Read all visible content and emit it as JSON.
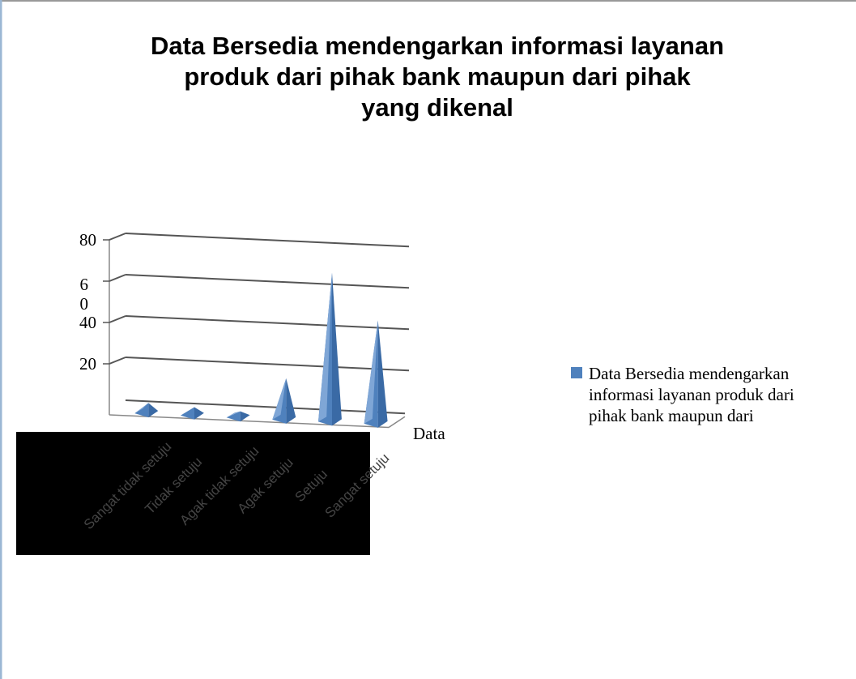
{
  "chart_data": {
    "type": "bar3d-pyramid",
    "title": "Data Bersedia mendengarkan informasi layanan\nproduk dari pihak bank maupun dari pihak\nyang dikenal",
    "categories": [
      "Sangat tidak setuju",
      "Tidak setuju",
      "Agak tidak setuju",
      "Agak setuju",
      "Setuju",
      "Sangat setuju"
    ],
    "series": [
      {
        "name": "Data Bersedia mendengarkan informasi layanan produk dari pihak bank maupun dari",
        "color": "#4f81bd",
        "values": [
          5,
          4,
          3,
          20,
          72,
          50
        ]
      }
    ],
    "x_label": "Data",
    "ylim": [
      0,
      80
    ],
    "yticks": [
      20,
      40,
      60,
      80
    ],
    "grid": true,
    "legend": "right"
  }
}
